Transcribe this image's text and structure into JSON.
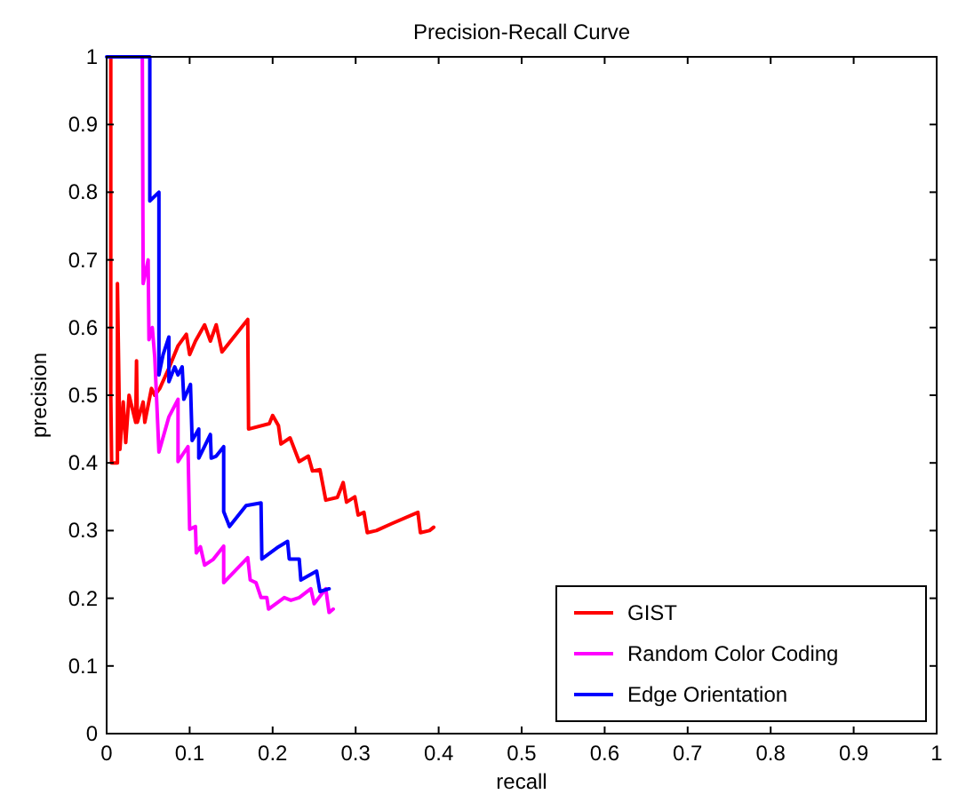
{
  "chart_data": {
    "type": "line",
    "title": "Precision-Recall Curve",
    "xlabel": "recall",
    "ylabel": "precision",
    "xlim": [
      0,
      1
    ],
    "ylim": [
      0,
      1
    ],
    "xticks": [
      0,
      0.1,
      0.2,
      0.3,
      0.4,
      0.5,
      0.6,
      0.7,
      0.8,
      0.9,
      1
    ],
    "yticks": [
      0,
      0.1,
      0.2,
      0.3,
      0.4,
      0.5,
      0.6,
      0.7,
      0.8,
      0.9,
      1
    ],
    "grid": false,
    "legend": "bottom right",
    "line_style": "solid",
    "marker": "none",
    "series": [
      {
        "name": "GIST",
        "color": "#ff0000",
        "x": [
          0.005,
          0.005,
          0.006,
          0.013,
          0.013,
          0.016,
          0.02,
          0.023,
          0.027,
          0.035,
          0.036,
          0.037,
          0.044,
          0.046,
          0.054,
          0.058,
          0.064,
          0.075,
          0.086,
          0.096,
          0.1,
          0.107,
          0.118,
          0.125,
          0.132,
          0.139,
          0.17,
          0.171,
          0.196,
          0.2,
          0.207,
          0.21,
          0.221,
          0.232,
          0.243,
          0.248,
          0.257,
          0.264,
          0.278,
          0.285,
          0.289,
          0.299,
          0.303,
          0.31,
          0.314,
          0.325,
          0.343,
          0.375,
          0.378,
          0.389,
          0.394
        ],
        "values": [
          1,
          0.5,
          0.4,
          0.4,
          0.665,
          0.42,
          0.49,
          0.43,
          0.5,
          0.46,
          0.551,
          0.46,
          0.49,
          0.46,
          0.51,
          0.5,
          0.51,
          0.54,
          0.573,
          0.59,
          0.56,
          0.58,
          0.604,
          0.58,
          0.604,
          0.564,
          0.612,
          0.45,
          0.458,
          0.47,
          0.455,
          0.428,
          0.437,
          0.402,
          0.41,
          0.388,
          0.39,
          0.345,
          0.349,
          0.371,
          0.342,
          0.35,
          0.323,
          0.327,
          0.297,
          0.3,
          0.31,
          0.327,
          0.297,
          0.3,
          0.305
        ]
      },
      {
        "name": "Random Color Coding",
        "color": "#ff00ff",
        "x": [
          0.043,
          0.044,
          0.05,
          0.051,
          0.055,
          0.058,
          0.063,
          0.075,
          0.086,
          0.086,
          0.093,
          0.098,
          0.1,
          0.107,
          0.108,
          0.113,
          0.118,
          0.128,
          0.141,
          0.141,
          0.17,
          0.173,
          0.18,
          0.186,
          0.193,
          0.195,
          0.214,
          0.222,
          0.232,
          0.246,
          0.25,
          0.264,
          0.268,
          0.273
        ],
        "values": [
          1,
          0.665,
          0.7,
          0.582,
          0.6,
          0.556,
          0.416,
          0.468,
          0.494,
          0.402,
          0.415,
          0.424,
          0.302,
          0.306,
          0.267,
          0.276,
          0.249,
          0.257,
          0.277,
          0.223,
          0.26,
          0.227,
          0.223,
          0.201,
          0.201,
          0.184,
          0.201,
          0.197,
          0.201,
          0.214,
          0.192,
          0.214,
          0.179,
          0.184
        ]
      },
      {
        "name": "Edge Orientation",
        "color": "#0000ff",
        "x": [
          0,
          0.052,
          0.052,
          0.063,
          0.063,
          0.068,
          0.075,
          0.075,
          0.082,
          0.086,
          0.091,
          0.093,
          0.101,
          0.103,
          0.111,
          0.111,
          0.125,
          0.126,
          0.132,
          0.141,
          0.141,
          0.148,
          0.168,
          0.186,
          0.187,
          0.207,
          0.218,
          0.22,
          0.232,
          0.234,
          0.253,
          0.257,
          0.268
        ],
        "values": [
          1,
          1,
          0.787,
          0.8,
          0.53,
          0.56,
          0.586,
          0.52,
          0.542,
          0.53,
          0.542,
          0.494,
          0.516,
          0.433,
          0.45,
          0.407,
          0.442,
          0.407,
          0.41,
          0.424,
          0.328,
          0.306,
          0.337,
          0.341,
          0.258,
          0.276,
          0.284,
          0.258,
          0.258,
          0.227,
          0.24,
          0.21,
          0.214
        ]
      }
    ]
  }
}
